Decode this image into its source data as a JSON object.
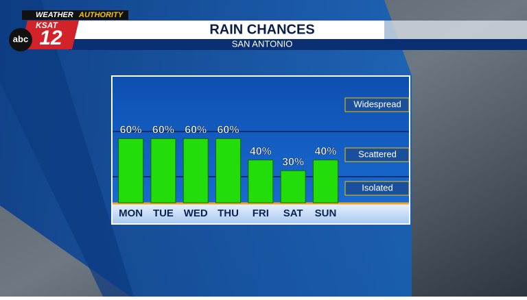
{
  "brand": {
    "network": "abc",
    "station": "KSAT",
    "channel": "12",
    "tagline_1": "WEATHER",
    "tagline_2": "AUTHORITY"
  },
  "chart_data": {
    "type": "bar",
    "title": "RAIN CHANCES",
    "subtitle": "SAN ANTONIO",
    "categories": [
      "MON",
      "TUE",
      "WED",
      "THU",
      "FRI",
      "SAT",
      "SUN"
    ],
    "values": [
      60,
      60,
      60,
      60,
      40,
      30,
      40
    ],
    "value_labels": [
      "60%",
      "60%",
      "60%",
      "60%",
      "40%",
      "30%",
      "40%"
    ],
    "color": "#22dd0a",
    "ylim": [
      0,
      100
    ],
    "annotations": [
      "Widespread",
      "Scattered",
      "Isolated"
    ]
  }
}
